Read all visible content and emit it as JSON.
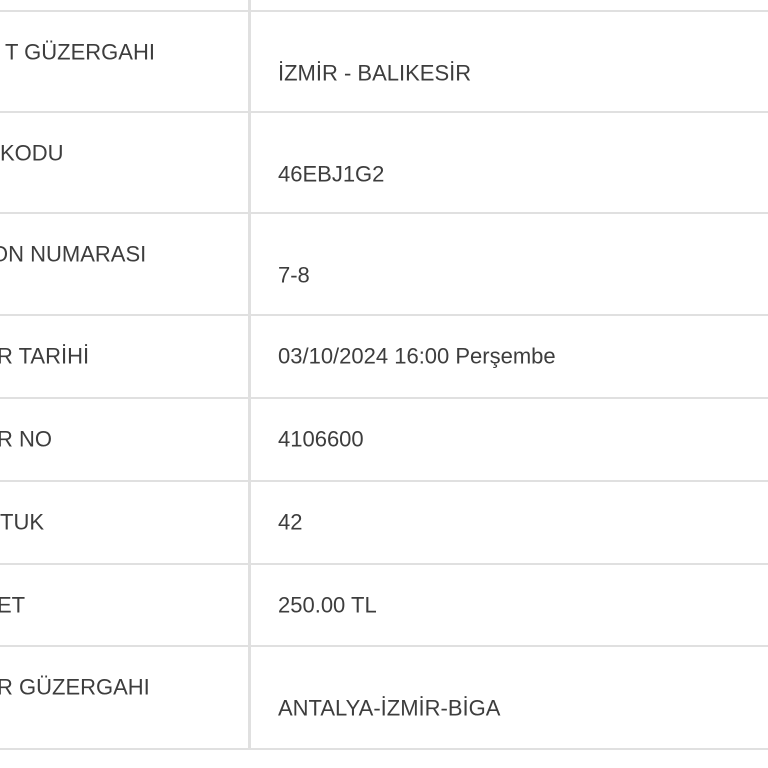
{
  "table": {
    "rows": [
      {
        "label": "T GÜZERGAHI",
        "value": "İZMİR - BALIKESİR"
      },
      {
        "label": "KODU",
        "value": "46EBJ1G2"
      },
      {
        "label": "ON NUMARASI",
        "value": "7-8"
      },
      {
        "label": "R TARİHİ",
        "value": "03/10/2024 16:00 Perşembe"
      },
      {
        "label": "R NO",
        "value": "4106600"
      },
      {
        "label": "TUK",
        "value": "42"
      },
      {
        "label": "ET",
        "value": "250.00 TL"
      },
      {
        "label": "R GÜZERGAHI",
        "value": "ANTALYA-İZMİR-BİGA"
      }
    ]
  },
  "colors": {
    "border": "#e0e0e0",
    "text": "#3d3d3d",
    "background": "#ffffff"
  }
}
